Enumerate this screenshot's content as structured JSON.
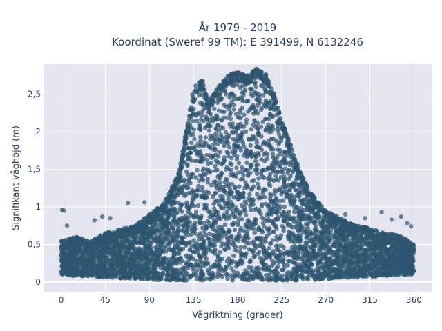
{
  "chart_data": {
    "type": "scatter",
    "title": "År 1979 - 2019",
    "subtitle": "Koordinat (Sweref 99 TM): E 391499, N 6132246",
    "xlabel": "Vågriktning (grader)",
    "ylabel": "Signifikant våghöjd (m)",
    "xlim": [
      -18,
      378
    ],
    "ylim": [
      -0.13,
      2.9
    ],
    "x_ticks": [
      0,
      45,
      90,
      135,
      180,
      225,
      270,
      315,
      360
    ],
    "x_tick_labels": [
      "0",
      "45",
      "90",
      "135",
      "180",
      "225",
      "270",
      "315",
      "360"
    ],
    "y_ticks": [
      0,
      0.5,
      1,
      1.5,
      2,
      2.5
    ],
    "y_tick_labels": [
      "0",
      "0,5",
      "1",
      "1,5",
      "2",
      "2,5"
    ],
    "grid": true,
    "marker_color": "#2e5670",
    "plot_background": "#e5e5ef",
    "envelope": {
      "x": [
        0,
        15,
        30,
        45,
        60,
        75,
        90,
        105,
        120,
        130,
        135,
        145,
        150,
        160,
        170,
        180,
        190,
        200,
        210,
        220,
        225,
        235,
        240,
        250,
        260,
        270,
        285,
        300,
        315,
        330,
        345,
        360
      ],
      "y_upper": [
        0.55,
        0.6,
        0.55,
        0.65,
        0.7,
        0.75,
        0.9,
        1.05,
        1.45,
        2.2,
        2.6,
        2.7,
        2.4,
        2.6,
        2.75,
        2.8,
        2.75,
        2.85,
        2.75,
        2.4,
        2.15,
        1.8,
        1.6,
        1.3,
        1.1,
        0.95,
        0.85,
        0.75,
        0.72,
        0.65,
        0.62,
        0.5
      ],
      "y_lower": [
        0.1,
        0.08,
        0.08,
        0.06,
        0.05,
        0.04,
        0.03,
        0.02,
        0.02,
        0.02,
        0.02,
        0.02,
        0.02,
        0.02,
        0.02,
        0.02,
        0.02,
        0.02,
        0.02,
        0.02,
        0.02,
        0.02,
        0.02,
        0.02,
        0.03,
        0.04,
        0.05,
        0.06,
        0.07,
        0.08,
        0.1,
        0.1
      ]
    },
    "outliers": [
      {
        "x": 1,
        "y": 0.96
      },
      {
        "x": 3,
        "y": 0.95
      },
      {
        "x": 42,
        "y": 0.87
      },
      {
        "x": 50,
        "y": 0.85
      },
      {
        "x": 68,
        "y": 1.05
      },
      {
        "x": 85,
        "y": 1.06
      },
      {
        "x": 290,
        "y": 0.9
      },
      {
        "x": 310,
        "y": 0.85
      },
      {
        "x": 327,
        "y": 0.93
      },
      {
        "x": 347,
        "y": 0.87
      },
      {
        "x": 353,
        "y": 0.78
      },
      {
        "x": 357,
        "y": 0.74
      },
      {
        "x": 6,
        "y": 0.75
      },
      {
        "x": 34,
        "y": 0.82
      },
      {
        "x": 337,
        "y": 0.83
      }
    ]
  }
}
